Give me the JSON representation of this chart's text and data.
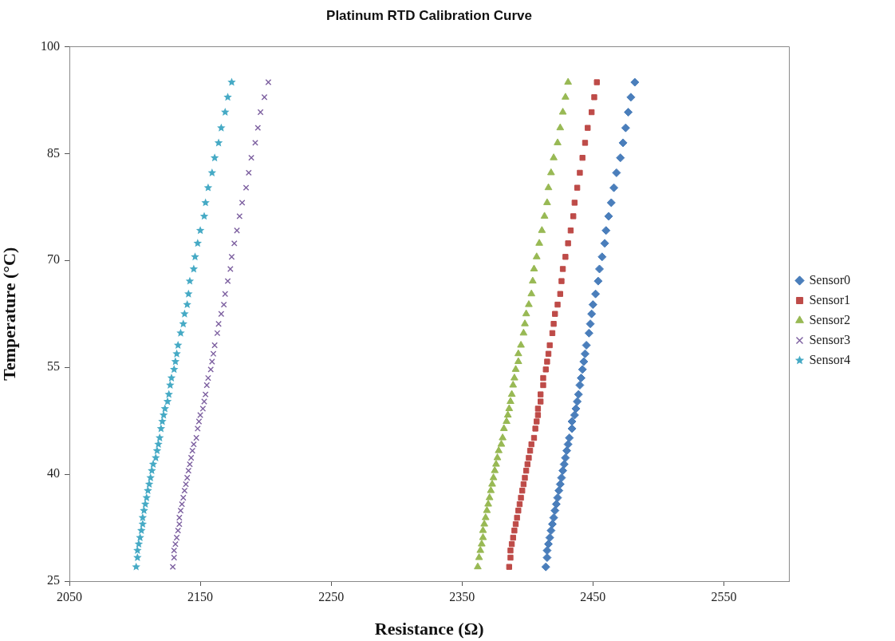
{
  "chart_data": {
    "type": "scatter",
    "title": "Platinum RTD Calibration Curve",
    "xlabel": "Resistance (Ω)",
    "ylabel": "Temperature (°C)",
    "xlim": [
      2050,
      2600
    ],
    "xticks": [
      2050,
      2150,
      2250,
      2350,
      2450,
      2550
    ],
    "ylim": [
      25,
      100
    ],
    "yticks": [
      25,
      40,
      55,
      70,
      85,
      100
    ],
    "legend": "right",
    "series": [
      {
        "name": "Sensor0",
        "color": "#4a7ebb",
        "marker": "diamond",
        "x": [
          2482,
          2479,
          2477,
          2475,
          2473,
          2471,
          2468,
          2466,
          2464,
          2462,
          2460,
          2459,
          2457,
          2455,
          2454,
          2452,
          2450,
          2449,
          2448,
          2447,
          2445,
          2444,
          2443,
          2442,
          2441,
          2440,
          2439,
          2438,
          2437,
          2436,
          2434,
          2434,
          2432,
          2431,
          2430,
          2429,
          2428,
          2427,
          2426,
          2425,
          2424,
          2423,
          2422,
          2421,
          2420,
          2419,
          2418,
          2417,
          2416,
          2415,
          2415,
          2414
        ],
        "values": [
          95,
          92.9,
          90.8,
          88.6,
          86.5,
          84.4,
          82.3,
          80.2,
          78.1,
          76.2,
          74.2,
          72.4,
          70.5,
          68.8,
          67.1,
          65.3,
          63.8,
          62.5,
          61.1,
          59.8,
          58.1,
          56.9,
          55.8,
          54.7,
          53.5,
          52.5,
          51.2,
          50.2,
          49.2,
          48.3,
          47.4,
          46.4,
          45.1,
          44.2,
          43.3,
          42.3,
          41.4,
          40.5,
          39.5,
          38.6,
          37.7,
          36.7,
          35.8,
          34.9,
          33.9,
          33,
          32.1,
          31.1,
          30.2,
          29.3,
          28.3,
          27
        ]
      },
      {
        "name": "Sensor1",
        "color": "#be4b48",
        "marker": "square",
        "x": [
          2453,
          2451,
          2449,
          2446,
          2444,
          2442,
          2440,
          2438,
          2436,
          2435,
          2433,
          2431,
          2429,
          2427,
          2426,
          2425,
          2423,
          2421,
          2420,
          2419,
          2417,
          2416,
          2415,
          2414,
          2412,
          2412,
          2410,
          2410,
          2408,
          2408,
          2407,
          2406,
          2405,
          2403,
          2402,
          2401,
          2400,
          2399,
          2398,
          2397,
          2396,
          2395,
          2394,
          2393,
          2392,
          2391,
          2390,
          2389,
          2388,
          2387,
          2387,
          2386
        ],
        "values": [
          95,
          92.9,
          90.8,
          88.6,
          86.5,
          84.4,
          82.3,
          80.2,
          78.1,
          76.2,
          74.2,
          72.4,
          70.5,
          68.8,
          67.1,
          65.3,
          63.8,
          62.5,
          61.1,
          59.8,
          58.1,
          56.9,
          55.8,
          54.7,
          53.5,
          52.5,
          51.2,
          50.2,
          49.2,
          48.3,
          47.4,
          46.4,
          45.1,
          44.2,
          43.3,
          42.3,
          41.4,
          40.5,
          39.5,
          38.6,
          37.7,
          36.7,
          35.8,
          34.9,
          33.9,
          33,
          32.1,
          31.1,
          30.2,
          29.3,
          28.3,
          27
        ]
      },
      {
        "name": "Sensor2",
        "color": "#98b954",
        "marker": "triangle",
        "x": [
          2431,
          2429,
          2427,
          2425,
          2423,
          2420,
          2418,
          2416,
          2415,
          2413,
          2411,
          2409,
          2407,
          2405,
          2404,
          2403,
          2401,
          2399,
          2398,
          2397,
          2395,
          2393,
          2393,
          2391,
          2390,
          2389,
          2388,
          2387,
          2386,
          2385,
          2384,
          2382,
          2381,
          2380,
          2378,
          2377,
          2376,
          2375,
          2374,
          2373,
          2372,
          2371,
          2370,
          2369,
          2368,
          2367,
          2366,
          2366,
          2365,
          2364,
          2363,
          2362
        ],
        "values": [
          95,
          92.9,
          90.8,
          88.6,
          86.5,
          84.4,
          82.3,
          80.2,
          78.1,
          76.2,
          74.2,
          72.4,
          70.5,
          68.8,
          67.1,
          65.3,
          63.8,
          62.5,
          61.1,
          59.8,
          58.1,
          56.9,
          55.8,
          54.7,
          53.5,
          52.5,
          51.2,
          50.2,
          49.2,
          48.3,
          47.4,
          46.4,
          45.1,
          44.2,
          43.3,
          42.3,
          41.4,
          40.5,
          39.5,
          38.6,
          37.7,
          36.7,
          35.8,
          34.9,
          33.9,
          33,
          32.1,
          31.1,
          30.2,
          29.3,
          28.3,
          27
        ]
      },
      {
        "name": "Sensor3",
        "color": "#7d60a0",
        "marker": "cross",
        "x": [
          2202,
          2199,
          2196,
          2194,
          2192,
          2189,
          2187,
          2185,
          2182,
          2180,
          2178,
          2176,
          2174,
          2173,
          2171,
          2169,
          2168,
          2166,
          2164,
          2163,
          2161,
          2160,
          2159,
          2158,
          2156,
          2155,
          2154,
          2153,
          2152,
          2150,
          2149,
          2148,
          2147,
          2145,
          2144,
          2143,
          2142,
          2141,
          2140,
          2139,
          2138,
          2137,
          2136,
          2135,
          2134,
          2134,
          2133,
          2132,
          2131,
          2130,
          2130,
          2129
        ],
        "values": [
          95,
          92.9,
          90.8,
          88.6,
          86.5,
          84.4,
          82.3,
          80.2,
          78.1,
          76.2,
          74.2,
          72.4,
          70.5,
          68.8,
          67.1,
          65.3,
          63.8,
          62.5,
          61.1,
          59.8,
          58.1,
          56.9,
          55.8,
          54.7,
          53.5,
          52.5,
          51.2,
          50.2,
          49.2,
          48.3,
          47.4,
          46.4,
          45.1,
          44.2,
          43.3,
          42.3,
          41.4,
          40.5,
          39.5,
          38.6,
          37.7,
          36.7,
          35.8,
          34.9,
          33.9,
          33,
          32.1,
          31.1,
          30.2,
          29.3,
          28.3,
          27
        ]
      },
      {
        "name": "Sensor4",
        "color": "#46aac5",
        "marker": "star",
        "x": [
          2174,
          2171,
          2169,
          2166,
          2164,
          2161,
          2159,
          2156,
          2154,
          2153,
          2150,
          2148,
          2146,
          2145,
          2142,
          2141,
          2140,
          2138,
          2137,
          2135,
          2133,
          2132,
          2131,
          2130,
          2128,
          2127,
          2126,
          2125,
          2123,
          2122,
          2121,
          2120,
          2119,
          2118,
          2117,
          2116,
          2114,
          2113,
          2112,
          2111,
          2110,
          2109,
          2108,
          2107,
          2106,
          2106,
          2105,
          2104,
          2103,
          2102,
          2102,
          2101
        ],
        "values": [
          95,
          92.9,
          90.8,
          88.6,
          86.5,
          84.4,
          82.3,
          80.2,
          78.1,
          76.2,
          74.2,
          72.4,
          70.5,
          68.8,
          67.1,
          65.3,
          63.8,
          62.5,
          61.1,
          59.8,
          58.1,
          56.9,
          55.8,
          54.7,
          53.5,
          52.5,
          51.2,
          50.2,
          49.2,
          48.3,
          47.4,
          46.4,
          45.1,
          44.2,
          43.3,
          42.3,
          41.4,
          40.5,
          39.5,
          38.6,
          37.7,
          36.7,
          35.8,
          34.9,
          33.9,
          33,
          32.1,
          31.1,
          30.2,
          29.3,
          28.3,
          27
        ]
      }
    ]
  }
}
